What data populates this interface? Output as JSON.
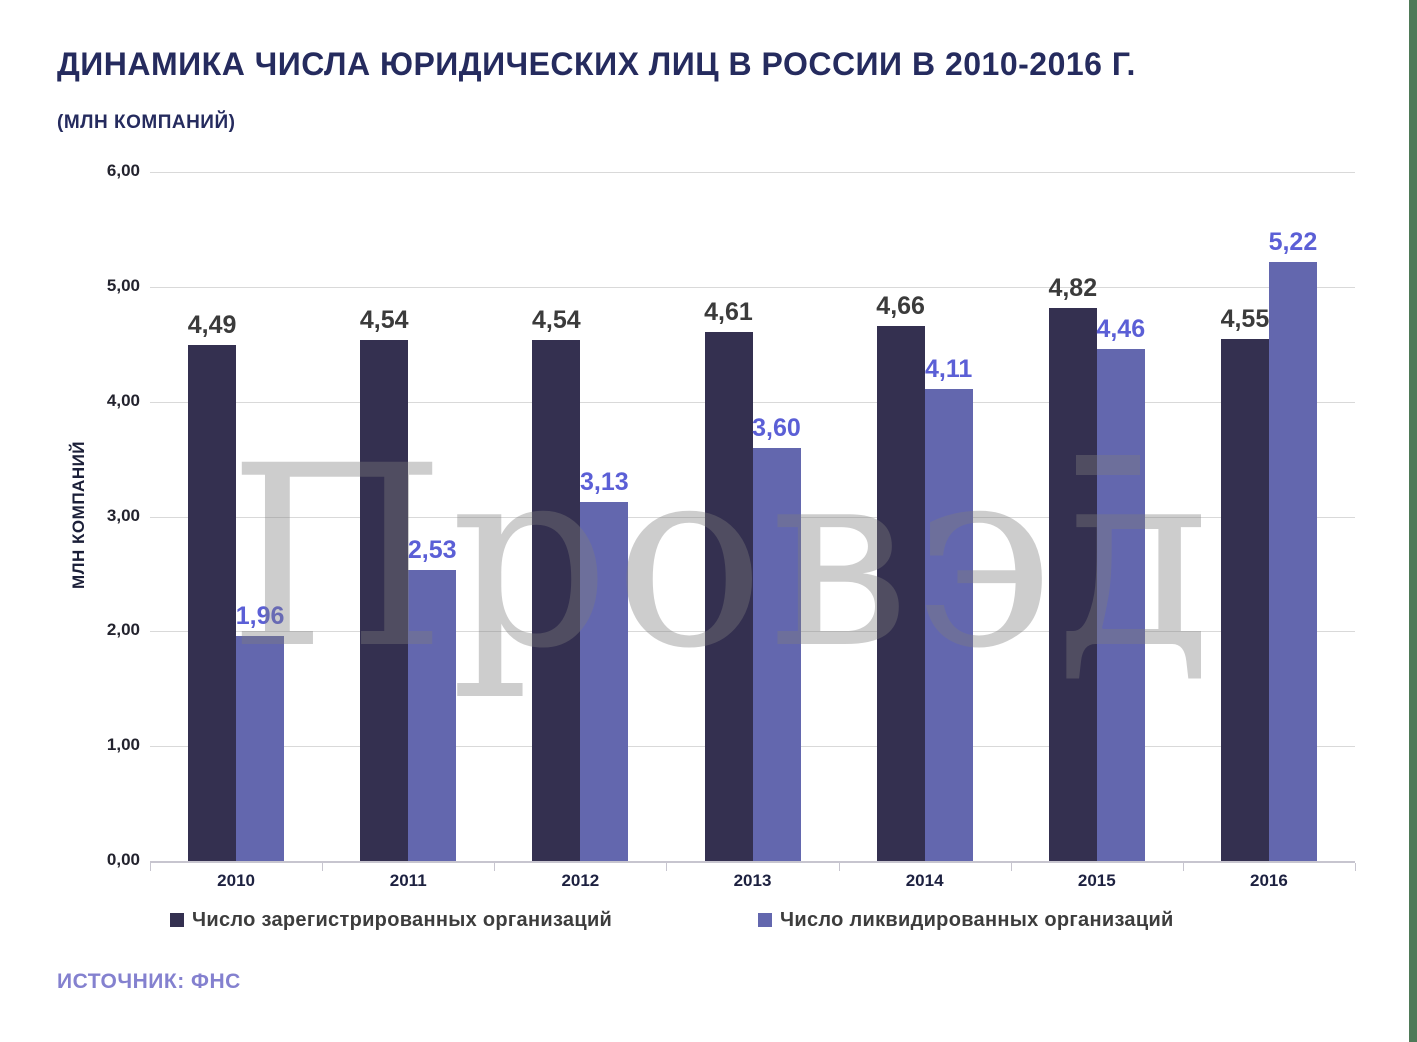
{
  "header": {
    "title": "ДИНАМИКА ЧИСЛА ЮРИДИЧЕСКИХ ЛИЦ В РОССИИ В 2010-2016 Г.",
    "subtitle": "(МЛН КОМПАНИЙ)"
  },
  "chart_data": {
    "type": "bar",
    "title": "ДИНАМИКА ЧИСЛА ЮРИДИЧЕСКИХ ЛИЦ В РОССИИ В 2010-2016 Г.",
    "subtitle": "(МЛН КОМПАНИЙ)",
    "categories": [
      "2010",
      "2011",
      "2012",
      "2013",
      "2014",
      "2015",
      "2016"
    ],
    "series": [
      {
        "name": "Число зарегистрированных организаций",
        "color": "#343050",
        "label_color": "#3b3b3b",
        "values": [
          4.49,
          4.54,
          4.54,
          4.61,
          4.66,
          4.82,
          4.55
        ],
        "labels": [
          "4,49",
          "4,54",
          "4,54",
          "4,61",
          "4,66",
          "4,82",
          "4,55"
        ]
      },
      {
        "name": "Число ликвидированных организаций",
        "color": "#6367ae",
        "label_color": "#5b5fd6",
        "values": [
          1.96,
          2.53,
          3.13,
          3.6,
          4.11,
          4.46,
          5.22
        ],
        "labels": [
          "1,96",
          "2,53",
          "3,13",
          "3,60",
          "4,11",
          "4,46",
          "5,22"
        ]
      }
    ],
    "xlabel": "",
    "ylabel": "МЛН КОМПАНИЙ",
    "ylim": [
      0,
      6
    ],
    "y_ticks": [
      {
        "value": 6,
        "label": "6,00"
      },
      {
        "value": 5,
        "label": "5,00"
      },
      {
        "value": 4,
        "label": "4,00"
      },
      {
        "value": 3,
        "label": "3,00"
      },
      {
        "value": 2,
        "label": "2,00"
      },
      {
        "value": 1,
        "label": "1,00"
      },
      {
        "value": 0,
        "label": "0,00"
      }
    ],
    "grid": true,
    "legend_position": "bottom"
  },
  "watermark": {
    "text": "Провэд",
    "color": "#7e7e7e"
  },
  "source": {
    "text": "ИСТОЧНИК: ФНС",
    "color": "#8481cf"
  },
  "frame": {
    "right_edge_color": "#4f7a58"
  }
}
